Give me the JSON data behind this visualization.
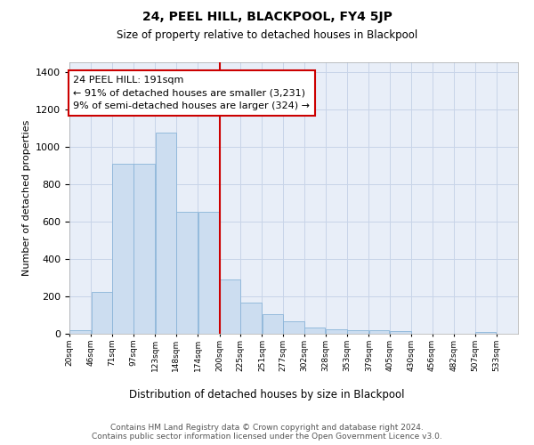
{
  "title": "24, PEEL HILL, BLACKPOOL, FY4 5JP",
  "subtitle": "Size of property relative to detached houses in Blackpool",
  "xlabel": "Distribution of detached houses by size in Blackpool",
  "ylabel": "Number of detached properties",
  "bin_labels": [
    "20sqm",
    "46sqm",
    "71sqm",
    "97sqm",
    "123sqm",
    "148sqm",
    "174sqm",
    "200sqm",
    "225sqm",
    "251sqm",
    "277sqm",
    "302sqm",
    "328sqm",
    "353sqm",
    "379sqm",
    "405sqm",
    "430sqm",
    "456sqm",
    "482sqm",
    "507sqm",
    "533sqm"
  ],
  "bar_values": [
    20,
    225,
    910,
    910,
    1075,
    650,
    650,
    290,
    165,
    105,
    65,
    35,
    25,
    20,
    20,
    15,
    0,
    0,
    0,
    10,
    0
  ],
  "bar_color": "#ccddf0",
  "bar_edge_color": "#8ab4d8",
  "grid_color": "#c8d4e8",
  "background_color": "#e8eef8",
  "vline_color": "#cc0000",
  "annotation_text": "24 PEEL HILL: 191sqm\n← 91% of detached houses are smaller (3,231)\n9% of semi-detached houses are larger (324) →",
  "annotation_box_color": "#ffffff",
  "annotation_box_edge": "#cc0000",
  "footer_text": "Contains HM Land Registry data © Crown copyright and database right 2024.\nContains public sector information licensed under the Open Government Licence v3.0.",
  "ylim": [
    0,
    1450
  ],
  "bin_edges": [
    7.5,
    33.5,
    58.5,
    84.5,
    110.5,
    135.5,
    161.5,
    187.5,
    212.5,
    238.5,
    263.5,
    289.5,
    314.5,
    340.5,
    366.5,
    391.5,
    417.5,
    442.5,
    468.5,
    494.5,
    519.5,
    545.5
  ]
}
